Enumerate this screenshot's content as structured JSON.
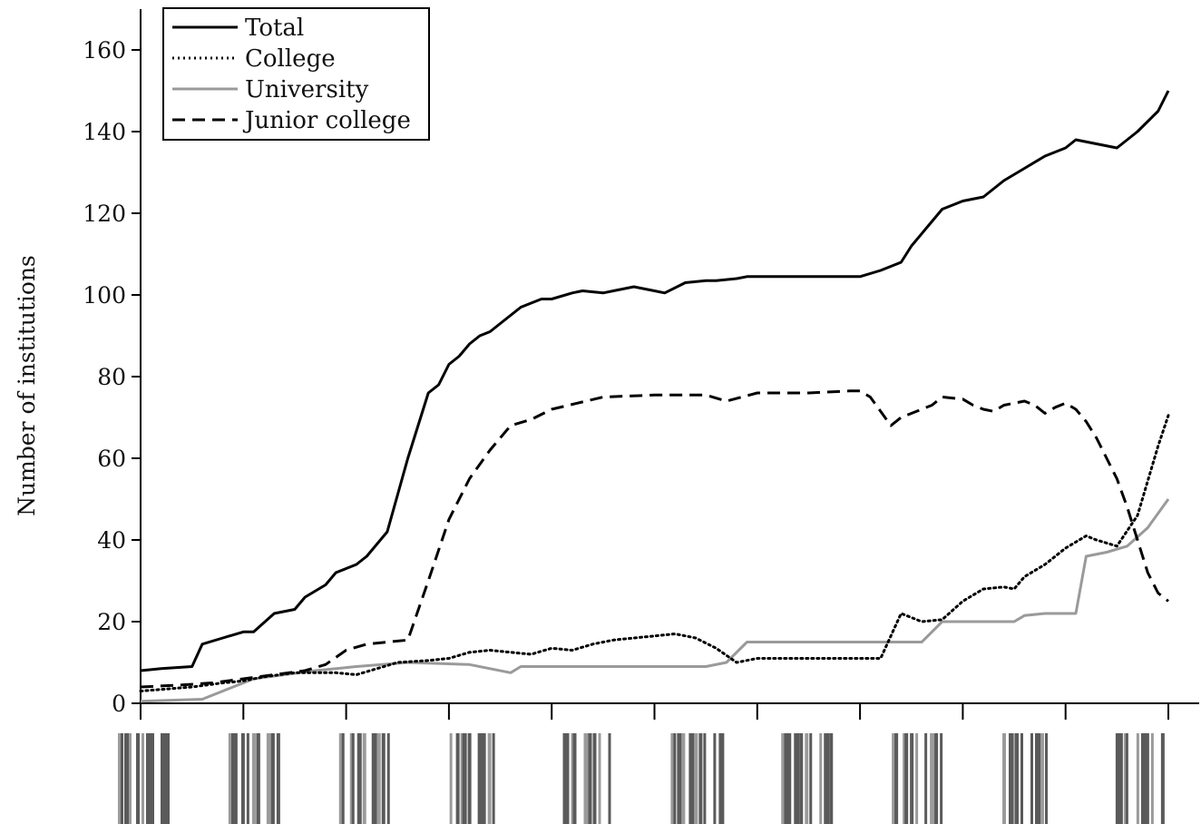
{
  "chart_data": {
    "type": "line",
    "ylabel": "Number of institutions",
    "ylim": [
      0,
      170
    ],
    "yticks": [
      0,
      20,
      40,
      60,
      80,
      100,
      120,
      140,
      160
    ],
    "x_range": [
      0,
      100
    ],
    "x_major_ticks": 11,
    "grid": false,
    "legend_position": "top-left",
    "series": [
      {
        "name": "Total",
        "style": "solid",
        "color": "#000000",
        "x": [
          0,
          2,
          5,
          6,
          8,
          10,
          11,
          13,
          15,
          16,
          18,
          19,
          20,
          21,
          22,
          24,
          26,
          28,
          29,
          30,
          31,
          32,
          33,
          34,
          35,
          37,
          38,
          39,
          40,
          42,
          43,
          45,
          46,
          48,
          50,
          51,
          53,
          55,
          56,
          58,
          59,
          61,
          63,
          65,
          67,
          70,
          72,
          74,
          75,
          77,
          78,
          79,
          80,
          82,
          84,
          86,
          88,
          90,
          91,
          93,
          95,
          97,
          99,
          100
        ],
        "values": [
          8,
          8.5,
          9,
          14.5,
          16,
          17.5,
          17.5,
          22,
          23,
          26,
          29,
          32,
          33,
          34,
          36,
          42,
          60,
          76,
          78,
          83,
          85,
          88,
          90,
          91,
          93,
          97,
          98,
          99,
          99,
          100.5,
          101,
          100.5,
          101,
          102,
          101,
          100.5,
          103,
          103.5,
          103.5,
          104,
          104.5,
          104.5,
          104.5,
          104.5,
          104.5,
          104.5,
          106,
          108,
          112,
          118,
          121,
          122,
          123,
          124,
          128,
          131,
          134,
          136,
          138,
          137,
          136,
          140,
          145,
          150
        ]
      },
      {
        "name": "College",
        "style": "dotted",
        "color": "#000000",
        "x": [
          0,
          5,
          8,
          10,
          12,
          15,
          17,
          19,
          21,
          25,
          28,
          30,
          32,
          34,
          36,
          38,
          40,
          42,
          44,
          46,
          48,
          50,
          52,
          54,
          56,
          58,
          60,
          62,
          65,
          68,
          72,
          74,
          76,
          78,
          80,
          82,
          84,
          85,
          86,
          88,
          90,
          92,
          93,
          95,
          97,
          99,
          100
        ],
        "values": [
          3,
          4,
          5,
          5.5,
          6.5,
          7.5,
          7.5,
          7.5,
          7,
          10,
          10.5,
          11,
          12.5,
          13,
          12.5,
          12,
          13.5,
          13,
          14.5,
          15.5,
          16,
          16.5,
          17,
          16,
          13.5,
          10,
          11,
          11,
          11,
          11,
          11,
          22,
          20,
          20.5,
          25,
          28,
          28.5,
          28,
          31,
          34,
          38,
          41,
          40,
          38.5,
          46,
          63,
          70.5
        ]
      },
      {
        "name": "University",
        "style": "solid",
        "color": "#9a9a9a",
        "x": [
          0,
          6,
          9,
          11,
          14,
          17,
          21,
          26,
          32,
          36,
          37,
          40,
          45,
          50,
          55,
          57,
          59,
          62,
          65,
          70,
          73,
          76,
          78,
          81,
          84,
          85,
          86,
          88,
          91,
          92,
          94,
          96,
          98,
          100
        ],
        "values": [
          0.5,
          1,
          4,
          6,
          7,
          8,
          9,
          10,
          9.5,
          7.5,
          9,
          9,
          9,
          9,
          9,
          10,
          15,
          15,
          15,
          15,
          15,
          15,
          20,
          20,
          20,
          20,
          21.5,
          22,
          22,
          36,
          37,
          38.5,
          43,
          50
        ]
      },
      {
        "name": "Junior college",
        "style": "dashed",
        "color": "#000000",
        "x": [
          0,
          4,
          7,
          10,
          13,
          16,
          18,
          20,
          22,
          24,
          26,
          28,
          30,
          32,
          34,
          36,
          38,
          40,
          45,
          50,
          55,
          57,
          60,
          65,
          69,
          70,
          71,
          73,
          74,
          76,
          77,
          78,
          80,
          81,
          82,
          83,
          84,
          86,
          87,
          88,
          89,
          90,
          91,
          92,
          93,
          94,
          95,
          96,
          97,
          98,
          99,
          100
        ],
        "values": [
          4,
          4.5,
          5,
          6,
          7,
          8,
          9.5,
          13,
          14.5,
          15,
          15.5,
          30,
          45,
          55,
          62,
          68,
          69.5,
          72,
          75,
          75.5,
          75.5,
          74,
          76,
          76,
          76.5,
          76.5,
          75,
          68,
          70,
          72,
          73,
          75,
          74.5,
          73,
          72,
          71.5,
          73,
          74,
          73,
          71,
          72.5,
          73.5,
          72,
          69,
          65,
          60,
          55,
          48,
          40,
          32,
          27,
          25
        ]
      }
    ],
    "barcode_groups": 10
  }
}
